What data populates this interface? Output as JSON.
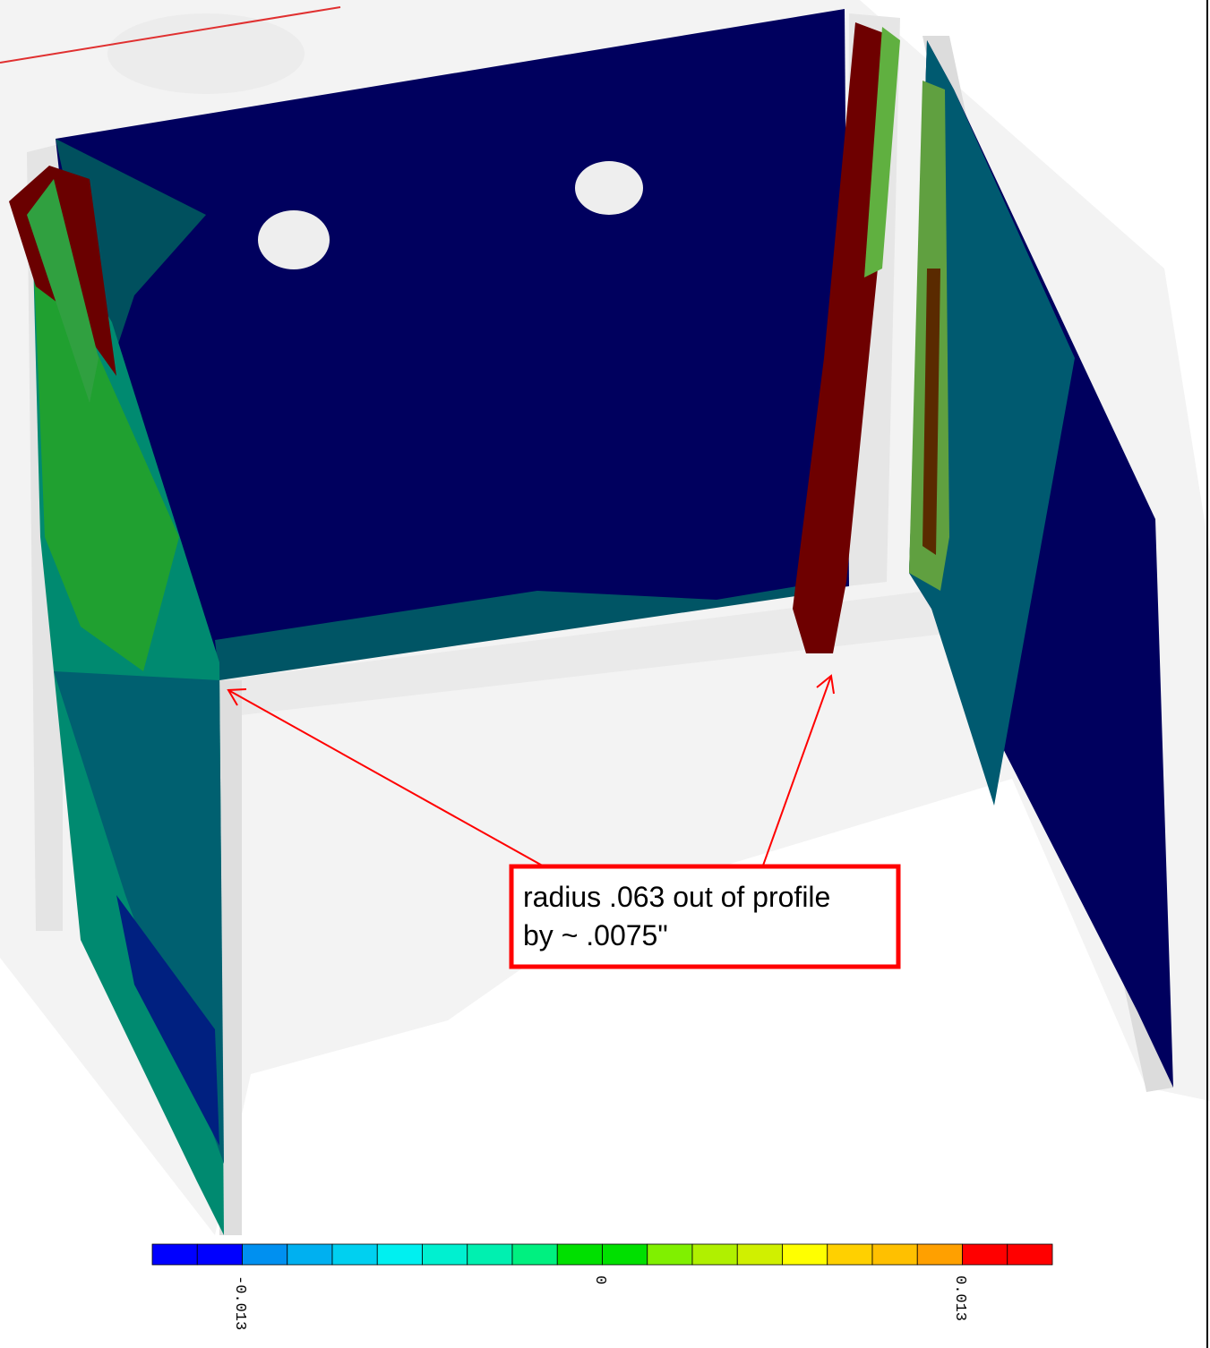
{
  "annotation": {
    "lines": [
      "radius .063 out of profile",
      "by ~ .0075\""
    ]
  },
  "color_scale": {
    "ticks": [
      "-0.013",
      "0",
      "0.013"
    ]
  }
}
